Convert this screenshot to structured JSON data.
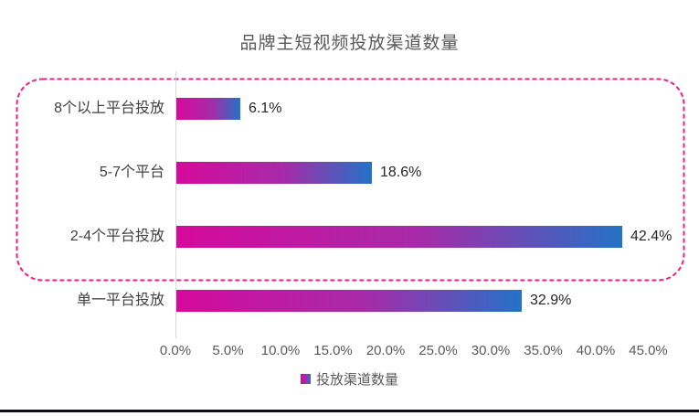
{
  "chart_data": {
    "type": "bar",
    "orientation": "horizontal",
    "title": "品牌主短视频投放渠道数量",
    "categories": [
      "8个以上平台投放",
      "5-7个平台",
      "2-4个平台投放",
      "单一平台投放"
    ],
    "series": [
      {
        "name": "投放渠道数量",
        "values": [
          6.1,
          18.6,
          42.4,
          32.9
        ]
      }
    ],
    "value_labels": [
      "6.1%",
      "18.6%",
      "42.4%",
      "32.9%"
    ],
    "x_ticks": [
      "0.0%",
      "5.0%",
      "10.0%",
      "15.0%",
      "20.0%",
      "25.0%",
      "30.0%",
      "35.0%",
      "40.0%",
      "45.0%"
    ],
    "xlim": [
      0,
      45
    ],
    "grid": false,
    "legend": {
      "label": "投放渠道数量",
      "position": "bottom"
    },
    "highlight": {
      "type": "dashed-rounded-box",
      "around_categories": [
        "8个以上平台投放",
        "5-7个平台",
        "2-4个平台投放"
      ]
    },
    "colors": {
      "bar_gradient_start": "#d6099c",
      "bar_gradient_mid": "#a62ba8",
      "bar_gradient_end": "#2472c6",
      "highlight_border": "#ea1f8f",
      "title_text": "#595959",
      "axis_text": "#595959",
      "category_text": "#404040",
      "value_text": "#262626",
      "bottom_rule": "#0e0e14"
    }
  }
}
